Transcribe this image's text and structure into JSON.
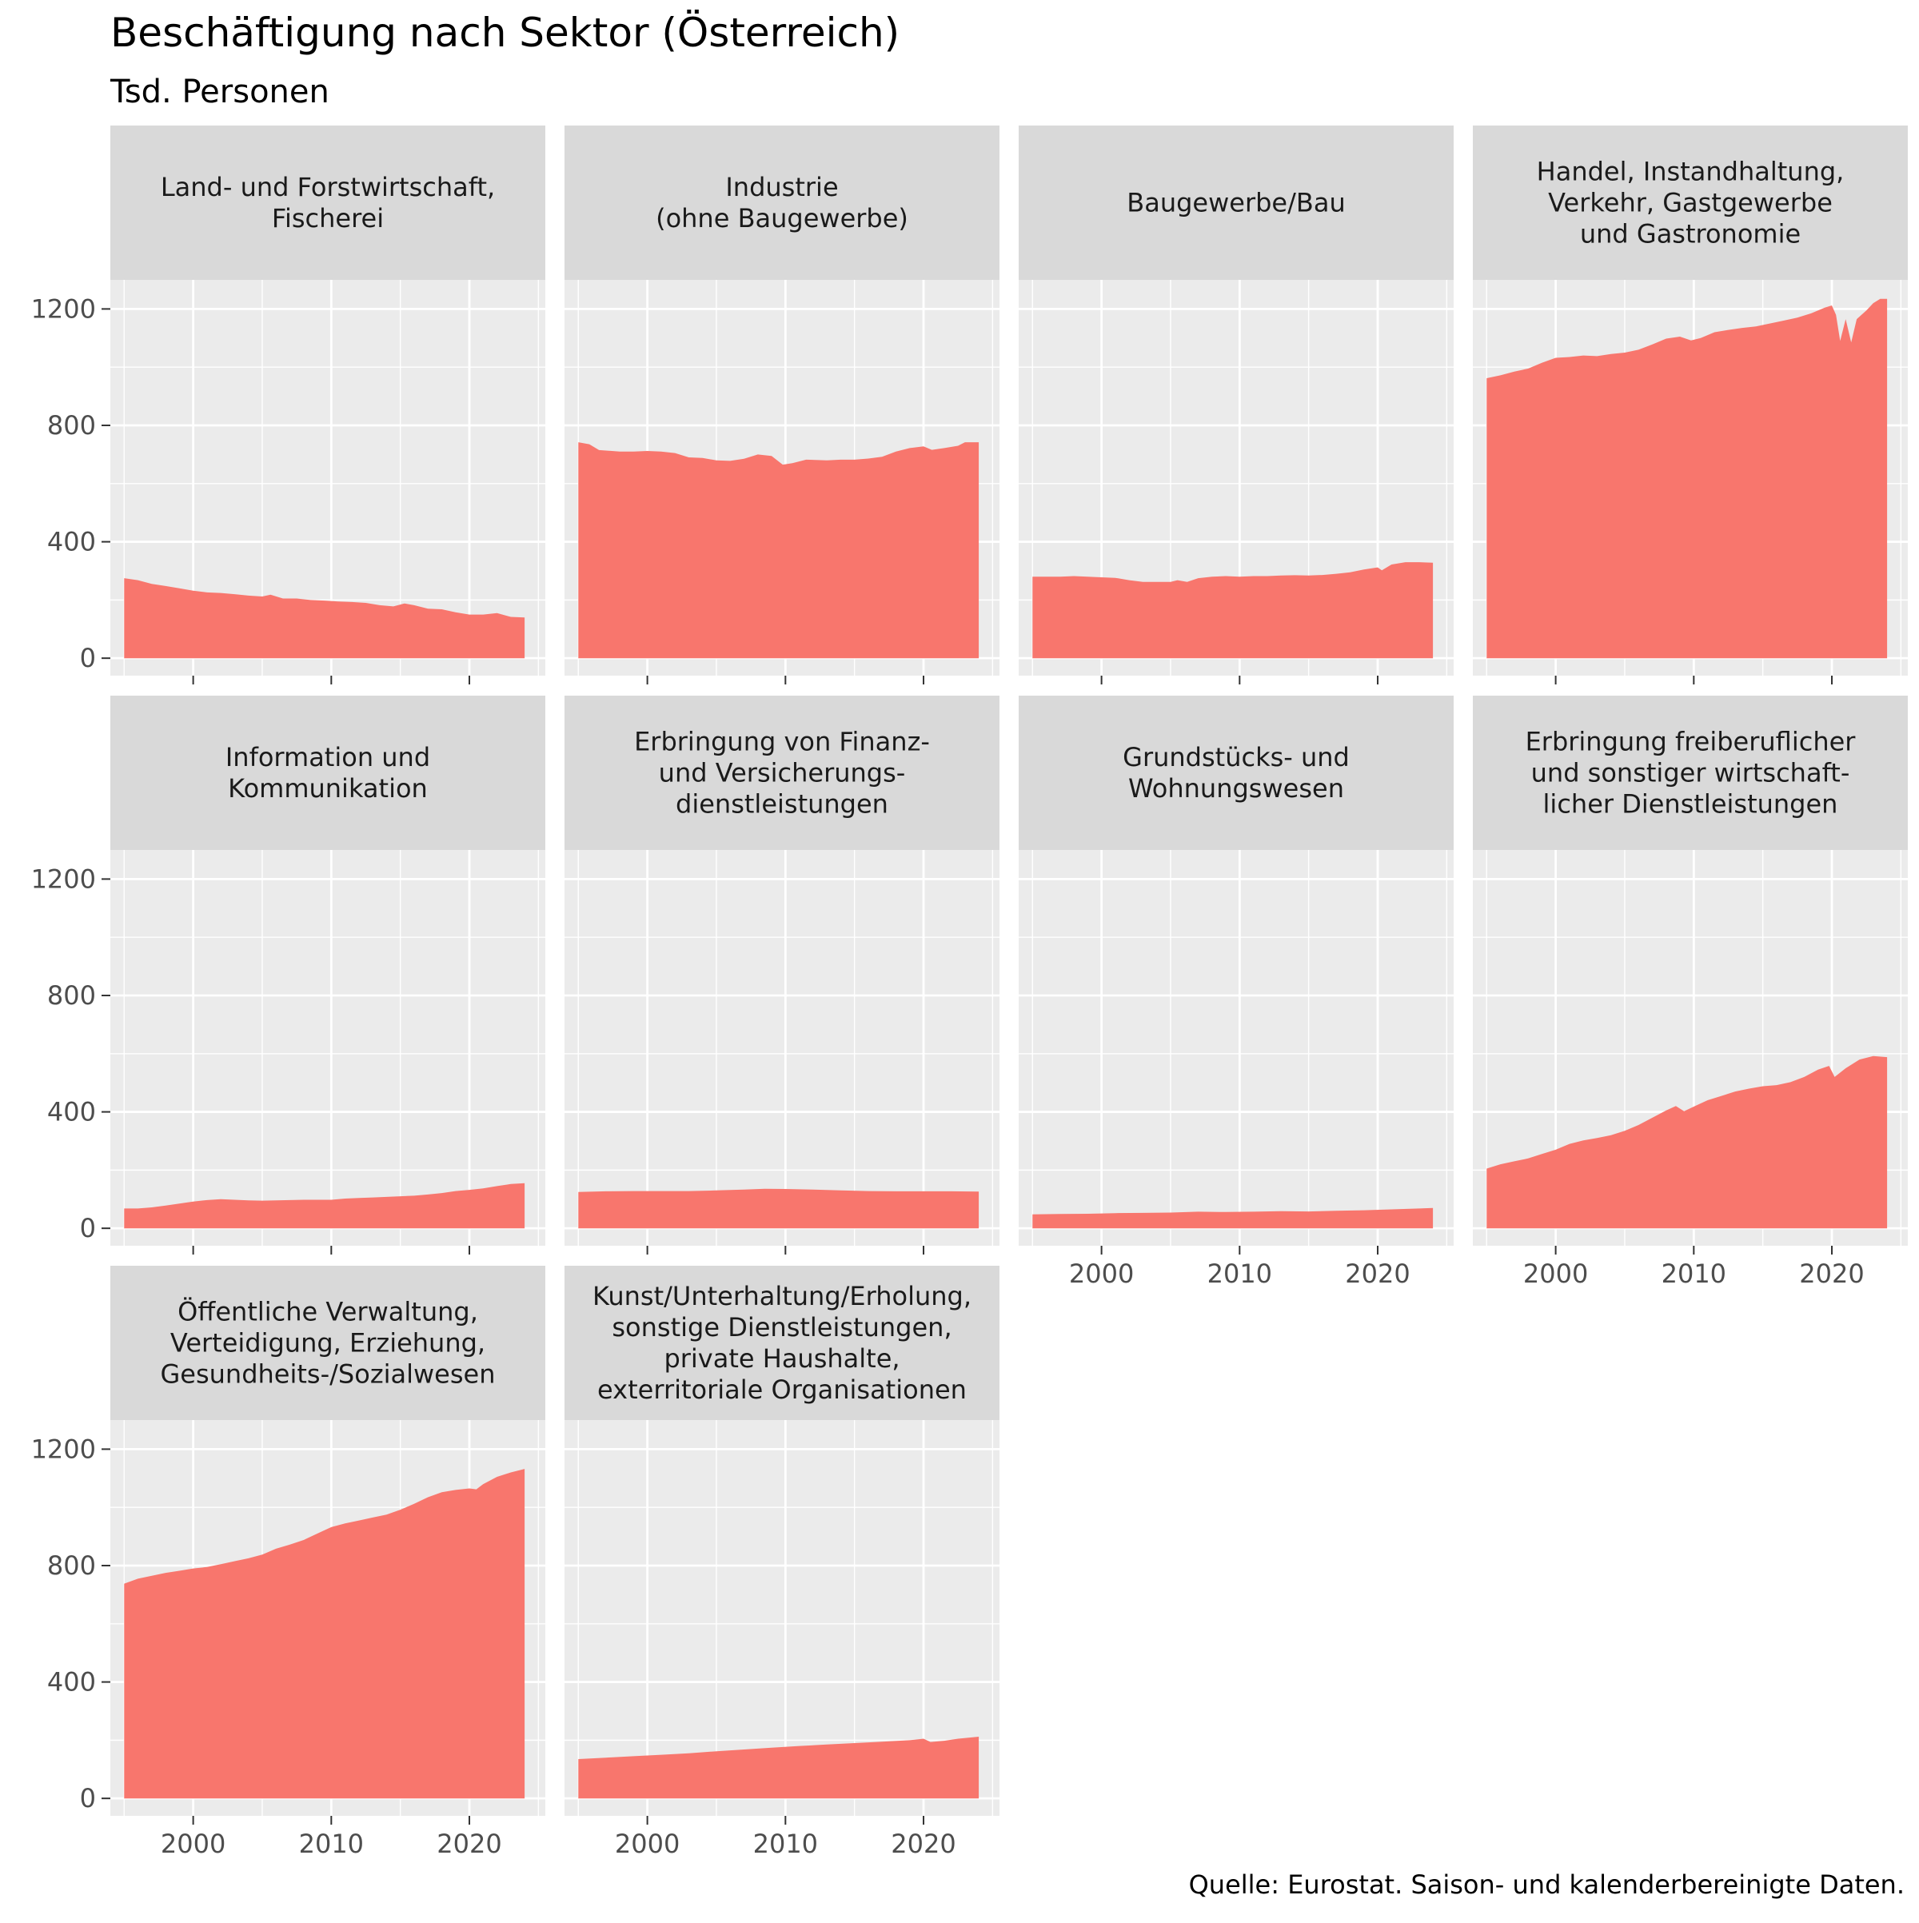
{
  "title": "Beschäftigung nach Sektor (Österreich)",
  "subtitle": "Tsd. Personen",
  "caption": "Quelle: Eurostat. Saison- und kalenderbereinigte Daten.",
  "colors": {
    "fill": "#F8766D",
    "panel_bg": "#EBEBEB",
    "strip_bg": "#D9D9D9",
    "grid": "#FFFFFF",
    "tick_text": "#4D4D4D"
  },
  "chart_data": {
    "type": "area",
    "facet_layout": "4 columns, 3 rows",
    "x_ticks": [
      2000,
      2010,
      2020
    ],
    "y_ticks": [
      0,
      400,
      800,
      1200
    ],
    "xlim": [
      1994.0,
      2025.5
    ],
    "ylim": [
      -60,
      1300
    ],
    "grid": true,
    "panels": [
      {
        "label": [
          "Land- und Forstwirtschaft,",
          "Fischerei"
        ],
        "points": [
          [
            1995.0,
            275
          ],
          [
            1996.0,
            268
          ],
          [
            1997.0,
            255
          ],
          [
            1998.0,
            248
          ],
          [
            1999.0,
            240
          ],
          [
            2000.0,
            232
          ],
          [
            2001.0,
            226
          ],
          [
            2002.0,
            224
          ],
          [
            2003.0,
            220
          ],
          [
            2004.0,
            215
          ],
          [
            2005.0,
            212
          ],
          [
            2005.6,
            218
          ],
          [
            2006.5,
            205
          ],
          [
            2007.5,
            205
          ],
          [
            2008.5,
            200
          ],
          [
            2009.5,
            198
          ],
          [
            2010.5,
            195
          ],
          [
            2011.5,
            193
          ],
          [
            2012.5,
            190
          ],
          [
            2013.5,
            182
          ],
          [
            2014.5,
            178
          ],
          [
            2015.3,
            188
          ],
          [
            2016.0,
            182
          ],
          [
            2017.0,
            170
          ],
          [
            2018.0,
            168
          ],
          [
            2019.0,
            158
          ],
          [
            2020.0,
            150
          ],
          [
            2021.0,
            150
          ],
          [
            2022.0,
            155
          ],
          [
            2023.0,
            142
          ],
          [
            2024.0,
            140
          ]
        ]
      },
      {
        "label": [
          "Industrie",
          "(ohne Baugewerbe)"
        ],
        "points": [
          [
            1995.0,
            742
          ],
          [
            1995.8,
            735
          ],
          [
            1996.5,
            715
          ],
          [
            1998.0,
            710
          ],
          [
            1999.0,
            710
          ],
          [
            2000.0,
            712
          ],
          [
            2001.0,
            710
          ],
          [
            2002.0,
            705
          ],
          [
            2003.0,
            690
          ],
          [
            2004.0,
            688
          ],
          [
            2005.0,
            680
          ],
          [
            2006.0,
            678
          ],
          [
            2007.0,
            685
          ],
          [
            2008.0,
            700
          ],
          [
            2009.0,
            695
          ],
          [
            2009.8,
            665
          ],
          [
            2010.5,
            670
          ],
          [
            2011.5,
            682
          ],
          [
            2013.0,
            680
          ],
          [
            2014.0,
            682
          ],
          [
            2015.0,
            682
          ],
          [
            2016.0,
            686
          ],
          [
            2017.0,
            692
          ],
          [
            2018.0,
            710
          ],
          [
            2019.0,
            722
          ],
          [
            2020.0,
            728
          ],
          [
            2020.6,
            716
          ],
          [
            2021.5,
            722
          ],
          [
            2022.5,
            730
          ],
          [
            2023.0,
            742
          ],
          [
            2024.0,
            742
          ]
        ]
      },
      {
        "label": [
          "Baugewerbe/Bau"
        ],
        "points": [
          [
            1995.0,
            280
          ],
          [
            1997.0,
            280
          ],
          [
            1998.0,
            282
          ],
          [
            1999.0,
            280
          ],
          [
            2000.0,
            278
          ],
          [
            2001.0,
            276
          ],
          [
            2002.0,
            268
          ],
          [
            2003.0,
            262
          ],
          [
            2004.0,
            262
          ],
          [
            2005.0,
            262
          ],
          [
            2005.5,
            268
          ],
          [
            2006.2,
            262
          ],
          [
            2007.0,
            275
          ],
          [
            2008.0,
            280
          ],
          [
            2009.0,
            282
          ],
          [
            2010.0,
            280
          ],
          [
            2011.0,
            282
          ],
          [
            2012.0,
            282
          ],
          [
            2013.0,
            284
          ],
          [
            2014.0,
            285
          ],
          [
            2015.0,
            284
          ],
          [
            2016.0,
            286
          ],
          [
            2017.0,
            290
          ],
          [
            2018.0,
            295
          ],
          [
            2019.0,
            305
          ],
          [
            2020.0,
            312
          ],
          [
            2020.3,
            302
          ],
          [
            2021.0,
            322
          ],
          [
            2022.0,
            330
          ],
          [
            2023.0,
            330
          ],
          [
            2024.0,
            328
          ]
        ]
      },
      {
        "label": [
          "Handel, Instandhaltung,",
          "Verkehr, Gastgewerbe",
          "und Gastronomie"
        ],
        "points": [
          [
            1995.0,
            962
          ],
          [
            1996.0,
            972
          ],
          [
            1997.0,
            985
          ],
          [
            1998.0,
            995
          ],
          [
            1999.0,
            1015
          ],
          [
            2000.0,
            1032
          ],
          [
            2001.0,
            1035
          ],
          [
            2002.0,
            1040
          ],
          [
            2003.0,
            1038
          ],
          [
            2004.0,
            1045
          ],
          [
            2005.0,
            1050
          ],
          [
            2006.0,
            1060
          ],
          [
            2007.0,
            1078
          ],
          [
            2008.0,
            1098
          ],
          [
            2009.0,
            1105
          ],
          [
            2009.8,
            1092
          ],
          [
            2010.5,
            1100
          ],
          [
            2011.5,
            1120
          ],
          [
            2012.5,
            1128
          ],
          [
            2013.5,
            1135
          ],
          [
            2014.5,
            1140
          ],
          [
            2015.5,
            1150
          ],
          [
            2016.5,
            1160
          ],
          [
            2017.5,
            1170
          ],
          [
            2018.5,
            1185
          ],
          [
            2019.5,
            1205
          ],
          [
            2020.0,
            1212
          ],
          [
            2020.3,
            1180
          ],
          [
            2020.6,
            1090
          ],
          [
            2021.0,
            1165
          ],
          [
            2021.4,
            1085
          ],
          [
            2021.8,
            1165
          ],
          [
            2022.5,
            1195
          ],
          [
            2023.0,
            1220
          ],
          [
            2023.5,
            1235
          ],
          [
            2024.0,
            1235
          ]
        ]
      },
      {
        "label": [
          "Information und",
          "Kommunikation"
        ],
        "points": [
          [
            1995.0,
            68
          ],
          [
            1996.0,
            68
          ],
          [
            1997.0,
            72
          ],
          [
            1998.0,
            78
          ],
          [
            1999.0,
            85
          ],
          [
            2000.0,
            92
          ],
          [
            2001.0,
            97
          ],
          [
            2002.0,
            100
          ],
          [
            2003.0,
            98
          ],
          [
            2004.0,
            96
          ],
          [
            2005.0,
            95
          ],
          [
            2006.0,
            96
          ],
          [
            2007.0,
            97
          ],
          [
            2008.0,
            98
          ],
          [
            2009.0,
            98
          ],
          [
            2010.0,
            98
          ],
          [
            2011.0,
            102
          ],
          [
            2012.0,
            104
          ],
          [
            2013.0,
            106
          ],
          [
            2014.0,
            108
          ],
          [
            2015.0,
            110
          ],
          [
            2016.0,
            112
          ],
          [
            2017.0,
            116
          ],
          [
            2018.0,
            121
          ],
          [
            2019.0,
            128
          ],
          [
            2020.0,
            132
          ],
          [
            2021.0,
            137
          ],
          [
            2022.0,
            145
          ],
          [
            2023.0,
            152
          ],
          [
            2024.0,
            155
          ]
        ]
      },
      {
        "label": [
          "Erbringung von Finanz-",
          "und Versicherungs-",
          "dienstleistungen"
        ],
        "points": [
          [
            1995.0,
            125
          ],
          [
            1997.0,
            127
          ],
          [
            1999.0,
            128
          ],
          [
            2001.0,
            128
          ],
          [
            2003.0,
            128
          ],
          [
            2005.0,
            130
          ],
          [
            2007.0,
            133
          ],
          [
            2008.5,
            136
          ],
          [
            2010.0,
            135
          ],
          [
            2012.0,
            133
          ],
          [
            2014.0,
            130
          ],
          [
            2016.0,
            128
          ],
          [
            2018.0,
            127
          ],
          [
            2020.0,
            127
          ],
          [
            2022.0,
            127
          ],
          [
            2024.0,
            126
          ]
        ]
      },
      {
        "label": [
          "Grundstücks- und",
          "Wohnungswesen"
        ],
        "points": [
          [
            1995.0,
            48
          ],
          [
            1997.0,
            49
          ],
          [
            1999.0,
            50
          ],
          [
            2001.0,
            52
          ],
          [
            2003.0,
            53
          ],
          [
            2005.0,
            54
          ],
          [
            2007.0,
            57
          ],
          [
            2009.0,
            56
          ],
          [
            2011.0,
            57
          ],
          [
            2013.0,
            59
          ],
          [
            2015.0,
            58
          ],
          [
            2017.0,
            60
          ],
          [
            2019.0,
            62
          ],
          [
            2021.0,
            65
          ],
          [
            2023.0,
            68
          ],
          [
            2024.0,
            70
          ]
        ]
      },
      {
        "label": [
          "Erbringung freiberuflicher",
          "und sonstiger wirtschaft-",
          "licher Dienstleistungen"
        ],
        "points": [
          [
            1995.0,
            205
          ],
          [
            1996.0,
            220
          ],
          [
            1997.0,
            230
          ],
          [
            1998.0,
            240
          ],
          [
            1999.0,
            255
          ],
          [
            2000.0,
            270
          ],
          [
            2001.0,
            290
          ],
          [
            2002.0,
            302
          ],
          [
            2003.0,
            310
          ],
          [
            2004.0,
            320
          ],
          [
            2005.0,
            335
          ],
          [
            2006.0,
            355
          ],
          [
            2007.0,
            380
          ],
          [
            2008.0,
            405
          ],
          [
            2008.7,
            420
          ],
          [
            2009.3,
            402
          ],
          [
            2010.0,
            418
          ],
          [
            2011.0,
            440
          ],
          [
            2012.0,
            455
          ],
          [
            2013.0,
            470
          ],
          [
            2014.0,
            480
          ],
          [
            2015.0,
            488
          ],
          [
            2016.0,
            492
          ],
          [
            2017.0,
            502
          ],
          [
            2018.0,
            520
          ],
          [
            2019.0,
            545
          ],
          [
            2019.8,
            558
          ],
          [
            2020.2,
            520
          ],
          [
            2021.0,
            550
          ],
          [
            2022.0,
            580
          ],
          [
            2023.0,
            592
          ],
          [
            2024.0,
            588
          ]
        ]
      },
      {
        "label": [
          "Öffentliche Verwaltung,",
          "Verteidigung, Erziehung,",
          "Gesundheits-/Sozialwesen"
        ],
        "points": [
          [
            1995.0,
            738
          ],
          [
            1996.0,
            755
          ],
          [
            1997.0,
            765
          ],
          [
            1998.0,
            775
          ],
          [
            1999.0,
            782
          ],
          [
            2000.0,
            790
          ],
          [
            2001.0,
            795
          ],
          [
            2002.0,
            805
          ],
          [
            2003.0,
            815
          ],
          [
            2004.0,
            825
          ],
          [
            2005.0,
            838
          ],
          [
            2006.0,
            858
          ],
          [
            2007.0,
            872
          ],
          [
            2008.0,
            888
          ],
          [
            2009.0,
            910
          ],
          [
            2010.0,
            932
          ],
          [
            2011.0,
            945
          ],
          [
            2012.0,
            955
          ],
          [
            2013.0,
            965
          ],
          [
            2014.0,
            975
          ],
          [
            2015.0,
            992
          ],
          [
            2016.0,
            1012
          ],
          [
            2017.0,
            1035
          ],
          [
            2018.0,
            1052
          ],
          [
            2019.0,
            1060
          ],
          [
            2020.0,
            1065
          ],
          [
            2020.5,
            1062
          ],
          [
            2021.0,
            1080
          ],
          [
            2022.0,
            1105
          ],
          [
            2023.0,
            1120
          ],
          [
            2024.0,
            1132
          ]
        ]
      },
      {
        "label": [
          "Kunst/Unterhaltung/Erholung,",
          "sonstige Dienstleistungen,",
          "private Haushalte,",
          "exterritoriale Organisationen"
        ],
        "points": [
          [
            1995.0,
            135
          ],
          [
            1997.0,
            140
          ],
          [
            1999.0,
            145
          ],
          [
            2001.0,
            150
          ],
          [
            2003.0,
            155
          ],
          [
            2005.0,
            162
          ],
          [
            2007.0,
            168
          ],
          [
            2009.0,
            174
          ],
          [
            2011.0,
            180
          ],
          [
            2013.0,
            185
          ],
          [
            2015.0,
            190
          ],
          [
            2017.0,
            195
          ],
          [
            2019.0,
            200
          ],
          [
            2020.0,
            205
          ],
          [
            2020.5,
            194
          ],
          [
            2021.5,
            198
          ],
          [
            2022.5,
            205
          ],
          [
            2024.0,
            212
          ]
        ]
      }
    ]
  }
}
